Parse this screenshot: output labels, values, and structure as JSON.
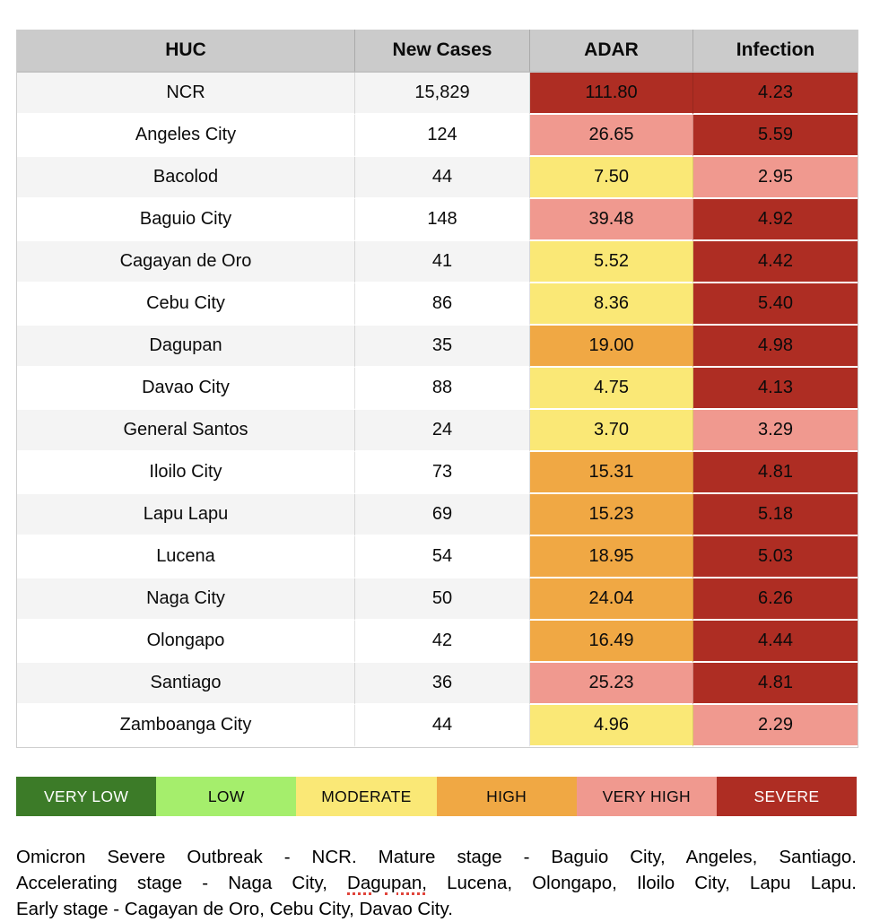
{
  "colors": {
    "header": "#cbcbcb",
    "row_odd": "#f4f4f4",
    "severe": "#ae2d23",
    "very_high": "#f0998f",
    "high": "#f0a844",
    "moderate": "#fae876",
    "low": "#a5ee6c",
    "very_low": "#3c7b28",
    "spellcheck": "#e0443a"
  },
  "table": {
    "headers": [
      "HUC",
      "New Cases",
      "ADAR",
      "Infection"
    ],
    "rows": [
      {
        "huc": "NCR",
        "new_cases": "15,829",
        "adar": "111.80",
        "adar_level": "severe",
        "infection": "4.23",
        "infection_level": "severe"
      },
      {
        "huc": "Angeles City",
        "new_cases": "124",
        "adar": "26.65",
        "adar_level": "very_high",
        "infection": "5.59",
        "infection_level": "severe"
      },
      {
        "huc": "Bacolod",
        "new_cases": "44",
        "adar": "7.50",
        "adar_level": "moderate",
        "infection": "2.95",
        "infection_level": "very_high"
      },
      {
        "huc": "Baguio City",
        "new_cases": "148",
        "adar": "39.48",
        "adar_level": "very_high",
        "infection": "4.92",
        "infection_level": "severe"
      },
      {
        "huc": "Cagayan de Oro",
        "new_cases": "41",
        "adar": "5.52",
        "adar_level": "moderate",
        "infection": "4.42",
        "infection_level": "severe"
      },
      {
        "huc": "Cebu City",
        "new_cases": "86",
        "adar": "8.36",
        "adar_level": "moderate",
        "infection": "5.40",
        "infection_level": "severe"
      },
      {
        "huc": "Dagupan",
        "new_cases": "35",
        "adar": "19.00",
        "adar_level": "high",
        "infection": "4.98",
        "infection_level": "severe"
      },
      {
        "huc": "Davao City",
        "new_cases": "88",
        "adar": "4.75",
        "adar_level": "moderate",
        "infection": "4.13",
        "infection_level": "severe"
      },
      {
        "huc": "General Santos",
        "new_cases": "24",
        "adar": "3.70",
        "adar_level": "moderate",
        "infection": "3.29",
        "infection_level": "very_high"
      },
      {
        "huc": "Iloilo City",
        "new_cases": "73",
        "adar": "15.31",
        "adar_level": "high",
        "infection": "4.81",
        "infection_level": "severe"
      },
      {
        "huc": "Lapu Lapu",
        "new_cases": "69",
        "adar": "15.23",
        "adar_level": "high",
        "infection": "5.18",
        "infection_level": "severe"
      },
      {
        "huc": "Lucena",
        "new_cases": "54",
        "adar": "18.95",
        "adar_level": "high",
        "infection": "5.03",
        "infection_level": "severe"
      },
      {
        "huc": "Naga City",
        "new_cases": "50",
        "adar": "24.04",
        "adar_level": "high",
        "infection": "6.26",
        "infection_level": "severe"
      },
      {
        "huc": "Olongapo",
        "new_cases": "42",
        "adar": "16.49",
        "adar_level": "high",
        "infection": "4.44",
        "infection_level": "severe"
      },
      {
        "huc": "Santiago",
        "new_cases": "36",
        "adar": "25.23",
        "adar_level": "very_high",
        "infection": "4.81",
        "infection_level": "severe"
      },
      {
        "huc": "Zamboanga City",
        "new_cases": "44",
        "adar": "4.96",
        "adar_level": "moderate",
        "infection": "2.29",
        "infection_level": "very_high"
      }
    ]
  },
  "legend": {
    "items": [
      {
        "label": "VERY LOW",
        "level": "very_low",
        "color": "#3c7b28"
      },
      {
        "label": "LOW",
        "level": "low",
        "color": "#a5ee6c"
      },
      {
        "label": "MODERATE",
        "level": "moderate",
        "color": "#fae876"
      },
      {
        "label": "HIGH",
        "level": "high",
        "color": "#f0a844"
      },
      {
        "label": "VERY HIGH",
        "level": "very_high",
        "color": "#f0998f"
      },
      {
        "label": "SEVERE",
        "level": "severe",
        "color": "#ae2d23"
      }
    ]
  },
  "footer": {
    "lines": [
      {
        "justify": true,
        "segments": [
          {
            "text": "Omicron Severe Outbreak - NCR. Mature stage - Baguio City, Angeles, Santiago."
          }
        ]
      },
      {
        "justify": true,
        "segments": [
          {
            "text": "Accelerating stage - Naga City, "
          },
          {
            "text": "Dagupan,",
            "misspelled": true
          },
          {
            "text": " Lucena, Olongapo, Iloilo City, Lapu Lapu."
          }
        ]
      },
      {
        "justify": false,
        "segments": [
          {
            "text": "Early stage -  Cagayan de Oro, Cebu City, Davao City."
          }
        ]
      }
    ]
  },
  "chart_data": {
    "type": "table",
    "title": "",
    "categories": [
      "NCR",
      "Angeles City",
      "Bacolod",
      "Baguio City",
      "Cagayan de Oro",
      "Cebu City",
      "Dagupan",
      "Davao City",
      "General Santos",
      "Iloilo City",
      "Lapu Lapu",
      "Lucena",
      "Naga City",
      "Olongapo",
      "Santiago",
      "Zamboanga City"
    ],
    "series": [
      {
        "name": "New Cases",
        "values": [
          15829,
          124,
          44,
          148,
          41,
          86,
          35,
          88,
          24,
          73,
          69,
          54,
          50,
          42,
          36,
          44
        ]
      },
      {
        "name": "ADAR",
        "values": [
          111.8,
          26.65,
          7.5,
          39.48,
          5.52,
          8.36,
          19.0,
          4.75,
          3.7,
          15.31,
          15.23,
          18.95,
          24.04,
          16.49,
          25.23,
          4.96
        ]
      },
      {
        "name": "Infection",
        "values": [
          4.23,
          5.59,
          2.95,
          4.92,
          4.42,
          5.4,
          4.98,
          4.13,
          3.29,
          4.81,
          5.18,
          5.03,
          6.26,
          4.44,
          4.81,
          2.29
        ]
      }
    ],
    "legend_entries": [
      "VERY LOW",
      "LOW",
      "MODERATE",
      "HIGH",
      "VERY HIGH",
      "SEVERE"
    ],
    "legend_position": "bottom"
  }
}
